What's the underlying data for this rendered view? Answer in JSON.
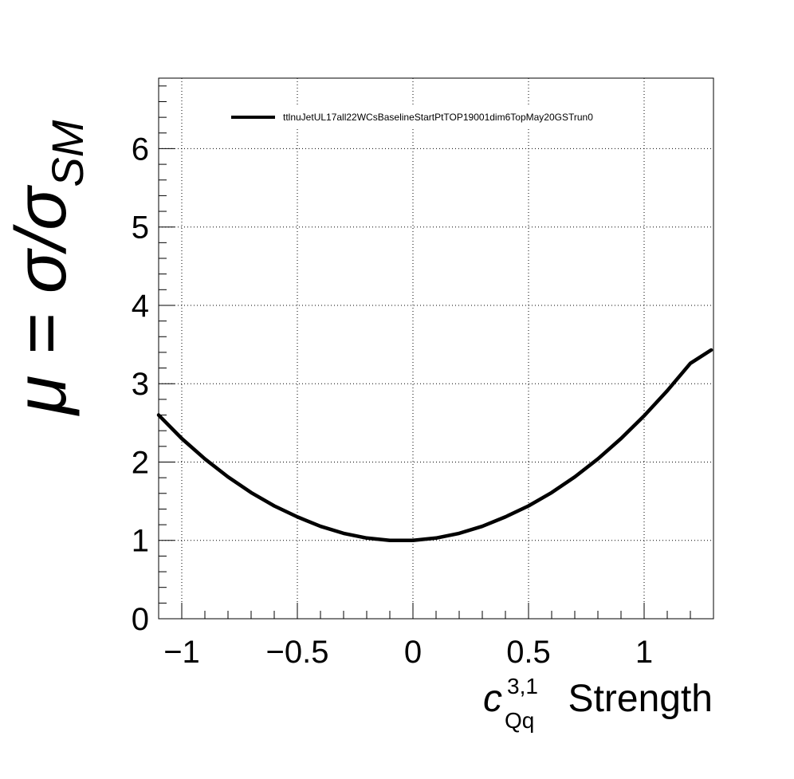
{
  "chart_data": {
    "type": "line",
    "title": "",
    "xlabel": "Strength",
    "xlabel_math": {
      "base": "c",
      "superscript": "3,1",
      "subscript": "Qq"
    },
    "ylabel": "μ = σ/σSM",
    "ylabel_parts": {
      "lhs": "μ = σ/σ",
      "subscript": "SM"
    },
    "xlim": [
      -1.1,
      1.3
    ],
    "ylim": [
      0,
      6.9
    ],
    "x_ticks": [
      {
        "value": -1,
        "label": "−1"
      },
      {
        "value": -0.5,
        "label": "−0.5"
      },
      {
        "value": 0,
        "label": "0"
      },
      {
        "value": 0.5,
        "label": "0.5"
      },
      {
        "value": 1,
        "label": "1"
      }
    ],
    "y_ticks": [
      {
        "value": 0,
        "label": "0"
      },
      {
        "value": 1,
        "label": "1"
      },
      {
        "value": 2,
        "label": "2"
      },
      {
        "value": 3,
        "label": "3"
      },
      {
        "value": 4,
        "label": "4"
      },
      {
        "value": 5,
        "label": "5"
      },
      {
        "value": 6,
        "label": "6"
      }
    ],
    "grid": true,
    "legend_position": "top",
    "series": [
      {
        "name": "ttlnuJetUL17all22WCsBaselineStartPtTOP19001dim6TopMay20GSTrun0",
        "color": "#000000",
        "x": [
          -1.1,
          -1.0,
          -0.9,
          -0.8,
          -0.7,
          -0.6,
          -0.5,
          -0.4,
          -0.3,
          -0.2,
          -0.1,
          0.0,
          0.1,
          0.2,
          0.3,
          0.4,
          0.5,
          0.6,
          0.7,
          0.8,
          0.9,
          1.0,
          1.1,
          1.2,
          1.29
        ],
        "y": [
          2.6,
          2.3,
          2.04,
          1.81,
          1.61,
          1.44,
          1.3,
          1.18,
          1.09,
          1.03,
          1.0,
          1.0,
          1.03,
          1.09,
          1.18,
          1.3,
          1.44,
          1.61,
          1.81,
          2.04,
          2.3,
          2.59,
          2.91,
          3.26,
          3.43
        ]
      }
    ]
  }
}
